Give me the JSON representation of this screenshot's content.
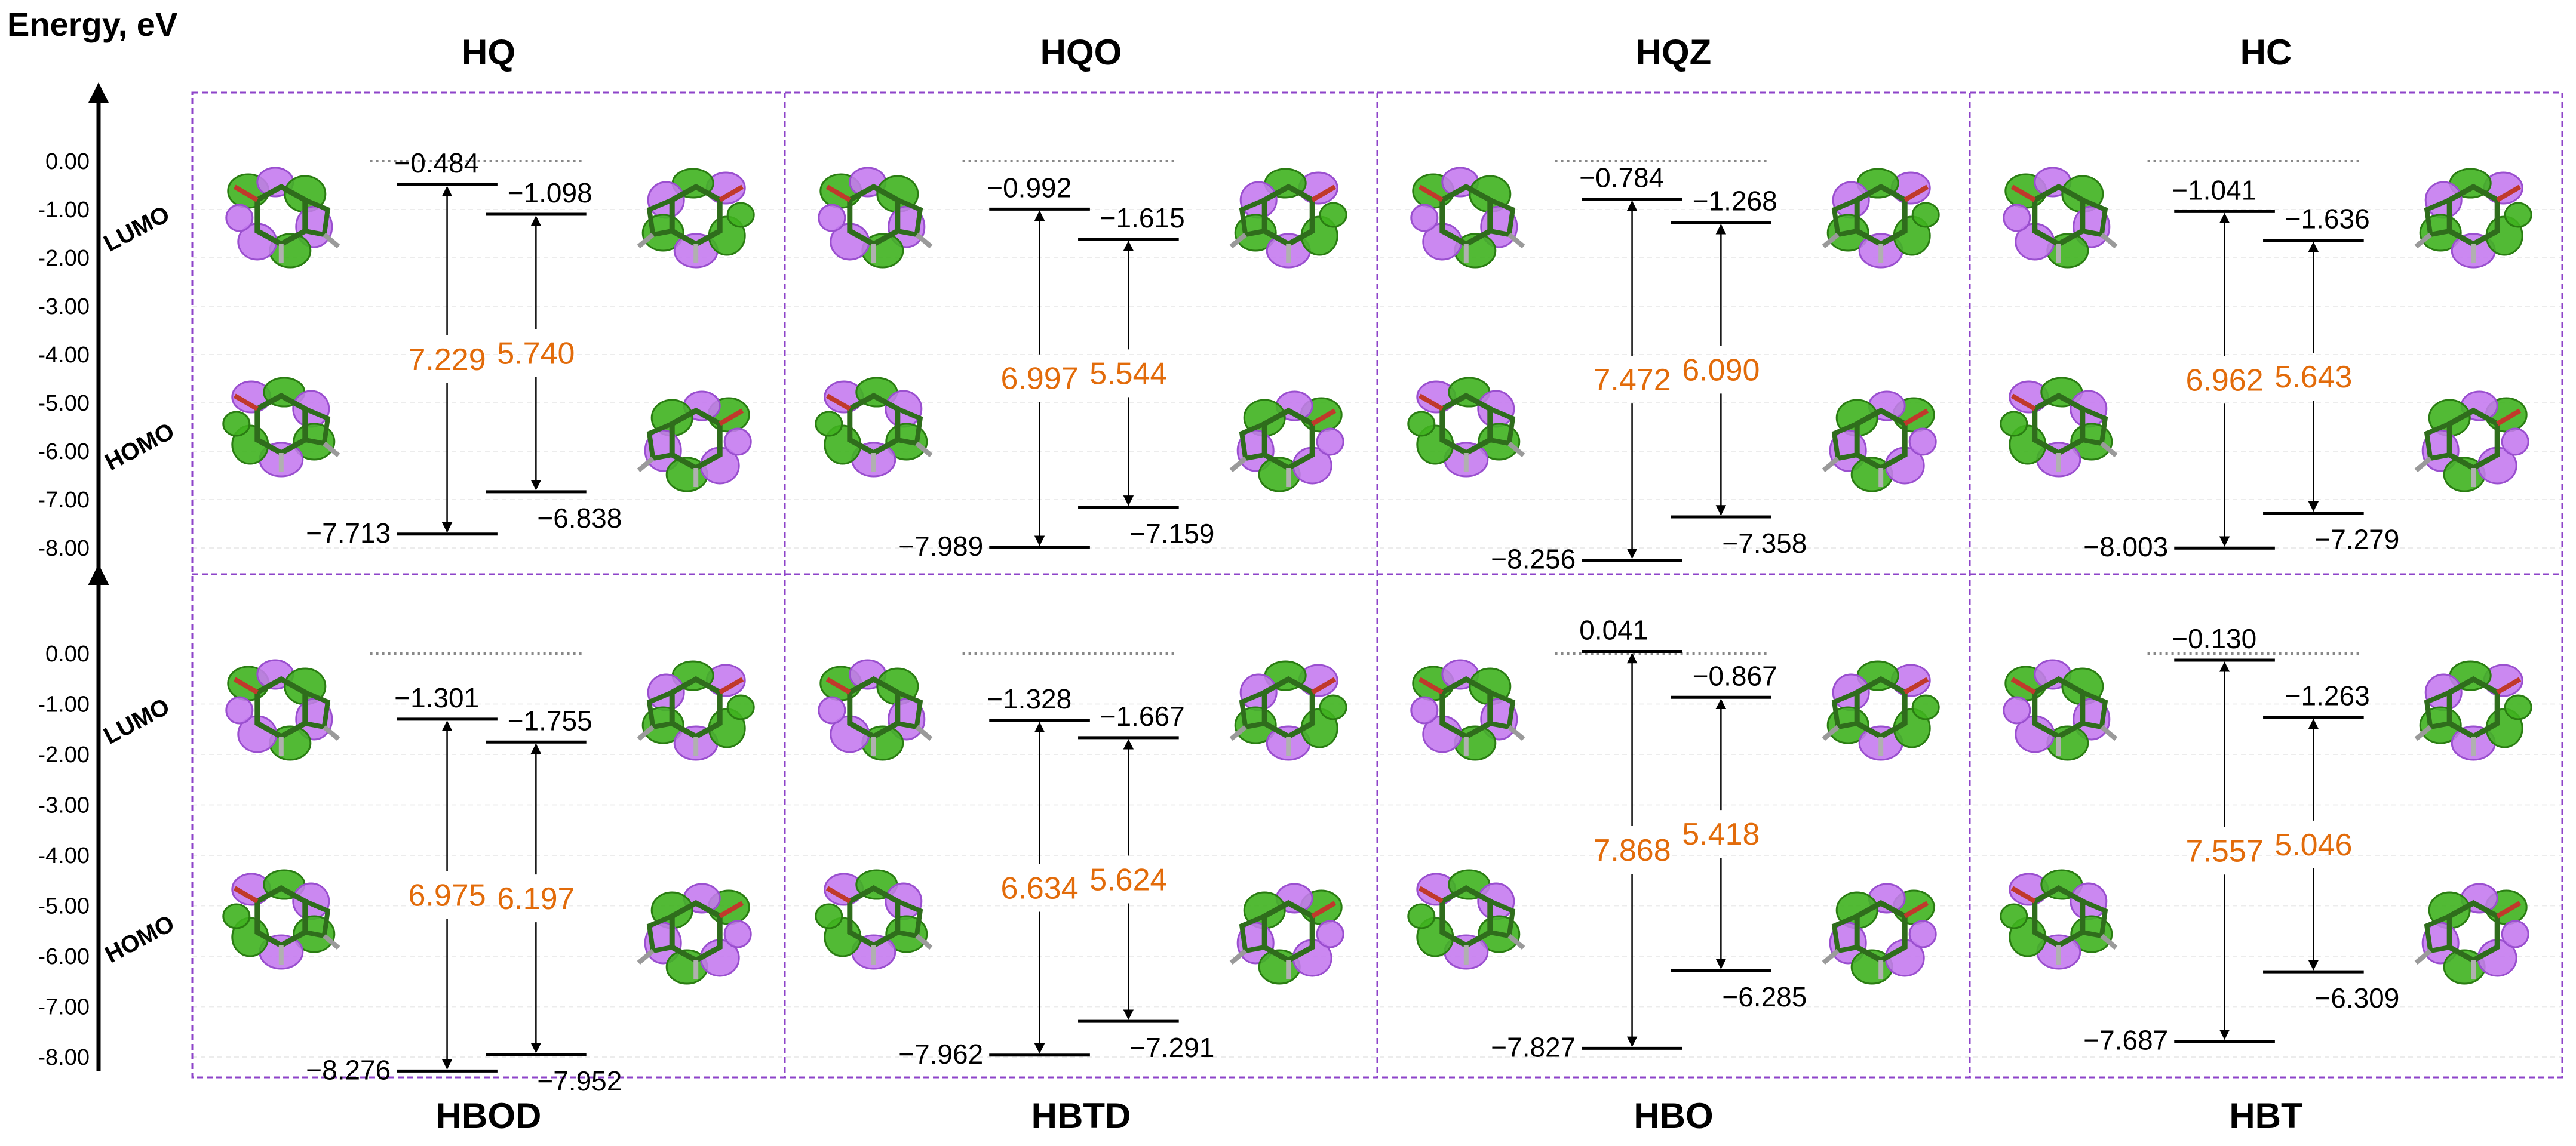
{
  "axis_title": "Energy, eV",
  "y_ticks": [
    "0.00",
    "-1.00",
    "-2.00",
    "-3.00",
    "-4.00",
    "-5.00",
    "-6.00",
    "-7.00",
    "-8.00"
  ],
  "side_labels": {
    "lumo": "LUMO",
    "homo": "HOMO"
  },
  "colors": {
    "gap_text": "#e26b0a",
    "frame": "#8e44c9",
    "orbital_purple": "#c57bf0",
    "orbital_green": "#3fb31f",
    "reference": "#888888"
  },
  "molecules": [
    {
      "name": "HQ",
      "row": 0,
      "col": 0,
      "levels": [
        {
          "lumo": "−0.484",
          "homo": "−7.713",
          "gap": "7.229",
          "lumo_v": -0.484,
          "homo_v": -7.713
        },
        {
          "lumo": "−1.098",
          "homo": "−6.838",
          "gap": "5.740",
          "lumo_v": -1.098,
          "homo_v": -6.838
        }
      ]
    },
    {
      "name": "HQO",
      "row": 0,
      "col": 1,
      "levels": [
        {
          "lumo": "−0.992",
          "homo": "−7.989",
          "gap": "6.997",
          "lumo_v": -0.992,
          "homo_v": -7.989
        },
        {
          "lumo": "−1.615",
          "homo": "−7.159",
          "gap": "5.544",
          "lumo_v": -1.615,
          "homo_v": -7.159
        }
      ]
    },
    {
      "name": "HQZ",
      "row": 0,
      "col": 2,
      "levels": [
        {
          "lumo": "−0.784",
          "homo": "−8.256",
          "gap": "7.472",
          "lumo_v": -0.784,
          "homo_v": -8.256
        },
        {
          "lumo": "−1.268",
          "homo": "−7.358",
          "gap": "6.090",
          "lumo_v": -1.268,
          "homo_v": -7.358
        }
      ]
    },
    {
      "name": "HC",
      "row": 0,
      "col": 3,
      "levels": [
        {
          "lumo": "−1.041",
          "homo": "−8.003",
          "gap": "6.962",
          "lumo_v": -1.041,
          "homo_v": -8.003
        },
        {
          "lumo": "−1.636",
          "homo": "−7.279",
          "gap": "5.643",
          "lumo_v": -1.636,
          "homo_v": -7.279
        }
      ]
    },
    {
      "name": "HBOD",
      "row": 1,
      "col": 0,
      "levels": [
        {
          "lumo": "−1.301",
          "homo": "−8.276",
          "gap": "6.975",
          "lumo_v": -1.301,
          "homo_v": -8.276
        },
        {
          "lumo": "−1.755",
          "homo": "−7.952",
          "gap": "6.197",
          "lumo_v": -1.755,
          "homo_v": -7.952
        }
      ]
    },
    {
      "name": "HBTD",
      "row": 1,
      "col": 1,
      "levels": [
        {
          "lumo": "−1.328",
          "homo": "−7.962",
          "gap": "6.634",
          "lumo_v": -1.328,
          "homo_v": -7.962
        },
        {
          "lumo": "−1.667",
          "homo": "−7.291",
          "gap": "5.624",
          "lumo_v": -1.667,
          "homo_v": -7.291
        }
      ]
    },
    {
      "name": "HBO",
      "row": 1,
      "col": 2,
      "levels": [
        {
          "lumo": "0.041",
          "homo": "−7.827",
          "gap": "7.868",
          "lumo_v": 0.041,
          "homo_v": -7.827
        },
        {
          "lumo": "−0.867",
          "homo": "−6.285",
          "gap": "5.418",
          "lumo_v": -0.867,
          "homo_v": -6.285
        }
      ]
    },
    {
      "name": "HBT",
      "row": 1,
      "col": 3,
      "levels": [
        {
          "lumo": "−0.130",
          "homo": "−7.687",
          "gap": "7.557",
          "lumo_v": -0.13,
          "homo_v": -7.687
        },
        {
          "lumo": "−1.263",
          "homo": "−6.309",
          "gap": "5.046",
          "lumo_v": -1.263,
          "homo_v": -6.309
        }
      ]
    }
  ]
}
